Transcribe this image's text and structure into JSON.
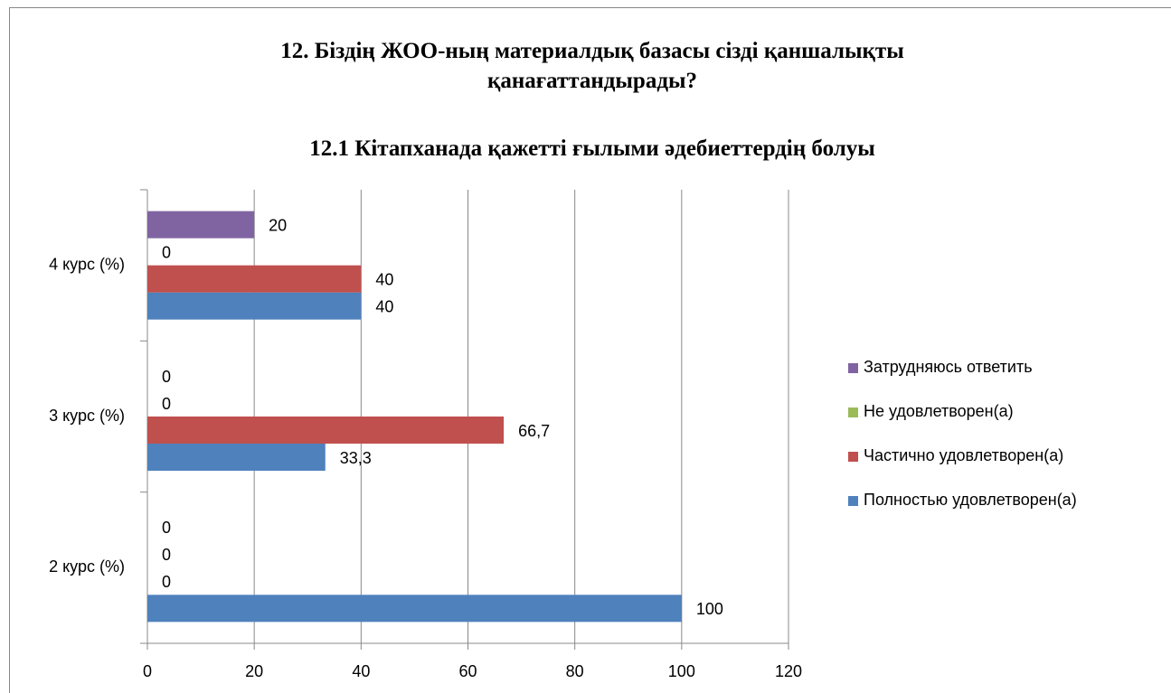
{
  "chart_data": {
    "type": "hbar",
    "title": "12. Біздің ЖОО-ның материалдық базасы сізді қаншалықты қанағаттандырады?",
    "subtitle": "12.1 Кітапханада қажетті ғылыми әдебиеттердің болуы",
    "categories": [
      "2 курс (%)",
      "3 курс (%)",
      "4 курс (%)"
    ],
    "series": [
      {
        "name": "Полностью удовлетворен(а)",
        "color": "#4f81bd",
        "values": [
          100,
          33.3,
          40
        ],
        "value_labels": [
          "100",
          "33,3",
          "40"
        ]
      },
      {
        "name": "Частично удовлетворен(а)",
        "color": "#c0504d",
        "values": [
          0,
          66.7,
          40
        ],
        "value_labels": [
          "0",
          "66,7",
          "40"
        ]
      },
      {
        "name": "Не удовлетворен(а)",
        "color": "#9bbb59",
        "values": [
          0,
          0,
          0
        ]
      },
      {
        "name": "Затрудняюсь ответить",
        "color": "#8064a2",
        "values": [
          0,
          0,
          20
        ]
      }
    ],
    "xlim": [
      0,
      120
    ],
    "xticks": [
      0,
      20,
      40,
      60,
      80,
      100,
      120
    ],
    "grid": true,
    "legend": "right"
  }
}
